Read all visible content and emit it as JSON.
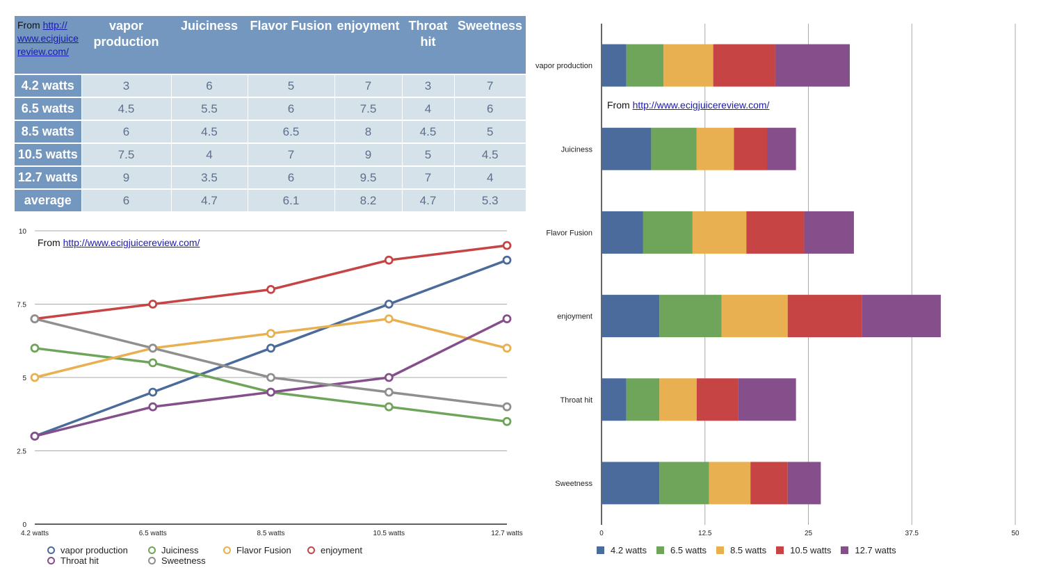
{
  "table": {
    "source_prefix": "From ",
    "source_link": "http://www.ecigjuicereview.com/",
    "source_link_display": "http:// www.ecigjuice review.com/",
    "columns": [
      "vapor production",
      "Juiciness",
      "Flavor Fusion",
      "enjoyment",
      "Throat hit",
      "Sweetness"
    ],
    "rows": [
      {
        "label": "4.2 watts",
        "values": [
          "3",
          "6",
          "5",
          "7",
          "3",
          "7"
        ]
      },
      {
        "label": "6.5 watts",
        "values": [
          "4.5",
          "5.5",
          "6",
          "7.5",
          "4",
          "6"
        ]
      },
      {
        "label": "8.5 watts",
        "values": [
          "6",
          "4.5",
          "6.5",
          "8",
          "4.5",
          "5"
        ]
      },
      {
        "label": "10.5 watts",
        "values": [
          "7.5",
          "4",
          "7",
          "9",
          "5",
          "4.5"
        ]
      },
      {
        "label": "12.7 watts",
        "values": [
          "9",
          "3.5",
          "6",
          "9.5",
          "7",
          "4"
        ]
      },
      {
        "label": "average",
        "values": [
          "6",
          "4.7",
          "6.1",
          "8.2",
          "4.7",
          "5.3"
        ]
      }
    ]
  },
  "colors": {
    "blue": "#4a6b9b",
    "green": "#6fa55b",
    "yellow": "#e8b050",
    "red": "#c64444",
    "purple": "#854f8c",
    "gray": "#8f8f8f"
  },
  "chart_data": [
    {
      "type": "line",
      "title": "",
      "source_prefix": "From ",
      "source_link": "http://www.ecigjuicereview.com/",
      "xlabel": "",
      "ylabel": "",
      "x": [
        "4.2 watts",
        "6.5 watts",
        "8.5 watts",
        "10.5 watts",
        "12.7 watts"
      ],
      "ylim": [
        0,
        10
      ],
      "yticks": [
        "0",
        "2.5",
        "5",
        "7.5",
        "10"
      ],
      "grid": true,
      "legend_position": "bottom-left",
      "series": [
        {
          "name": "vapor production",
          "color": "#4a6b9b",
          "values": [
            3,
            4.5,
            6,
            7.5,
            9
          ]
        },
        {
          "name": "Juiciness",
          "color": "#6fa55b",
          "values": [
            6,
            5.5,
            4.5,
            4,
            3.5
          ]
        },
        {
          "name": "Flavor Fusion",
          "color": "#e8b050",
          "values": [
            5,
            6,
            6.5,
            7,
            6
          ]
        },
        {
          "name": "enjoyment",
          "color": "#c64444",
          "values": [
            7,
            7.5,
            8,
            9,
            9.5
          ]
        },
        {
          "name": "Throat hit",
          "color": "#854f8c",
          "values": [
            3,
            4,
            4.5,
            5,
            7
          ]
        },
        {
          "name": "Sweetness",
          "color": "#8f8f8f",
          "values": [
            7,
            6,
            5,
            4.5,
            4
          ]
        }
      ]
    },
    {
      "type": "bar",
      "orientation": "horizontal",
      "stacked": true,
      "title": "",
      "source_prefix": "From ",
      "source_link": "http://www.ecigjuicereview.com/",
      "xlabel": "",
      "ylabel": "",
      "categories": [
        "vapor production",
        "Juiciness",
        "Flavor Fusion",
        "enjoyment",
        "Throat hit",
        "Sweetness"
      ],
      "xlim": [
        0,
        50
      ],
      "xticks": [
        "0",
        "12.5",
        "25",
        "37.5",
        "50"
      ],
      "grid": true,
      "legend_position": "bottom-left",
      "series": [
        {
          "name": "4.2 watts",
          "color": "#4a6b9b",
          "values": [
            3,
            6,
            5,
            7,
            3,
            7
          ]
        },
        {
          "name": "6.5 watts",
          "color": "#6fa55b",
          "values": [
            4.5,
            5.5,
            6,
            7.5,
            4,
            6
          ]
        },
        {
          "name": "8.5 watts",
          "color": "#e8b050",
          "values": [
            6,
            4.5,
            6.5,
            8,
            4.5,
            5
          ]
        },
        {
          "name": "10.5 watts",
          "color": "#c64444",
          "values": [
            7.5,
            4,
            7,
            9,
            5,
            4.5
          ]
        },
        {
          "name": "12.7 watts",
          "color": "#854f8c",
          "values": [
            9,
            3.5,
            6,
            9.5,
            7,
            4
          ]
        }
      ]
    }
  ]
}
